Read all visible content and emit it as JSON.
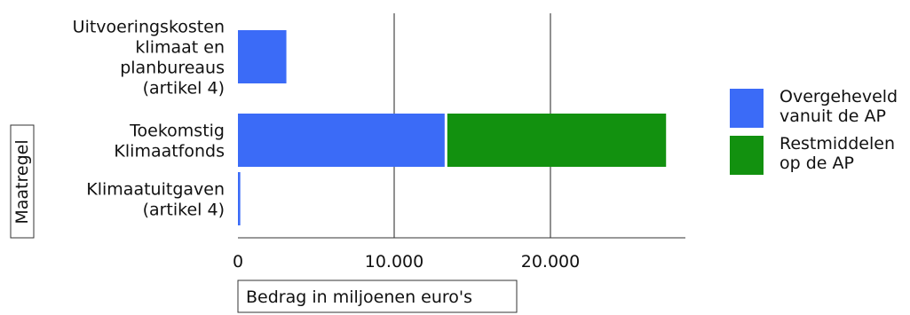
{
  "chart_data": {
    "type": "bar",
    "orientation": "horizontal",
    "stacked": true,
    "title": "",
    "xlabel": "Bedrag in miljoenen euro's",
    "ylabel": "Maatregel",
    "categories": [
      [
        "Uitvoeringskosten",
        "klimaat en",
        "planbureaus",
        "(artikel 4)"
      ],
      [
        "Toekomstig",
        "Klimaatfonds"
      ],
      [
        "Klimaatuitgaven",
        "(artikel 4)"
      ]
    ],
    "series": [
      {
        "name": "Overgeheveld vanuit de AP",
        "legend_lines": [
          "Overgeheveld",
          "vanuit de AP"
        ],
        "color": "#3b6bf7",
        "values": [
          3100,
          13400,
          150
        ]
      },
      {
        "name": "Restmiddelen op de AP",
        "legend_lines": [
          "Restmiddelen",
          "op de AP"
        ],
        "color": "#12910f",
        "values": [
          0,
          14000,
          0
        ]
      }
    ],
    "xlim": [
      0,
      28500
    ],
    "xticks": [
      0,
      10000,
      20000
    ],
    "xtick_labels": [
      "0",
      "10.000",
      "20.000"
    ],
    "grid": {
      "vertical": true,
      "horizontal": false
    },
    "legend_position": "right"
  }
}
